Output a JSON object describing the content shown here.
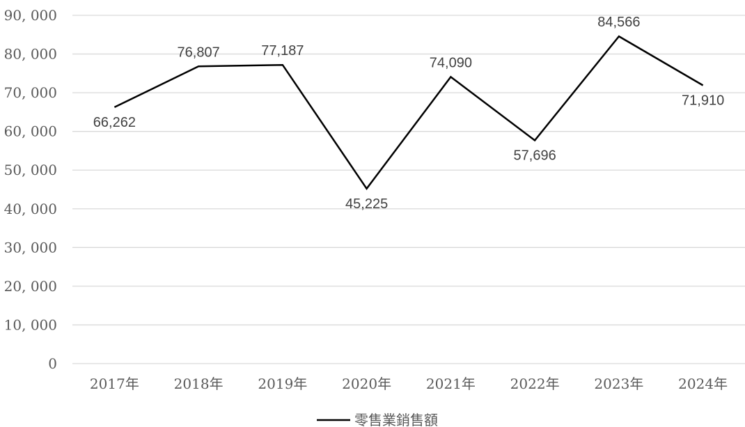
{
  "chart_data": {
    "type": "line",
    "title": "",
    "xlabel": "",
    "ylabel": "",
    "categories": [
      "2017年",
      "2018年",
      "2019年",
      "2020年",
      "2021年",
      "2022年",
      "2023年",
      "2024年"
    ],
    "series": [
      {
        "name": "零售業銷售額",
        "values": [
          66262,
          76807,
          77187,
          45225,
          74090,
          57696,
          84566,
          71910
        ],
        "labels": [
          "66,262",
          "76,807",
          "77,187",
          "45,225",
          "74,090",
          "57,696",
          "84,566",
          "71,910"
        ],
        "color": "#000000"
      }
    ],
    "ylim": [
      0,
      90000
    ],
    "yticks": [
      "0",
      "10, 000",
      "20, 000",
      "30, 000",
      "40, 000",
      "50, 000",
      "60, 000",
      "70, 000",
      "80, 000",
      "90, 000"
    ],
    "grid": true,
    "gridColor": "#d9d9d9",
    "legend_position": "bottom"
  }
}
